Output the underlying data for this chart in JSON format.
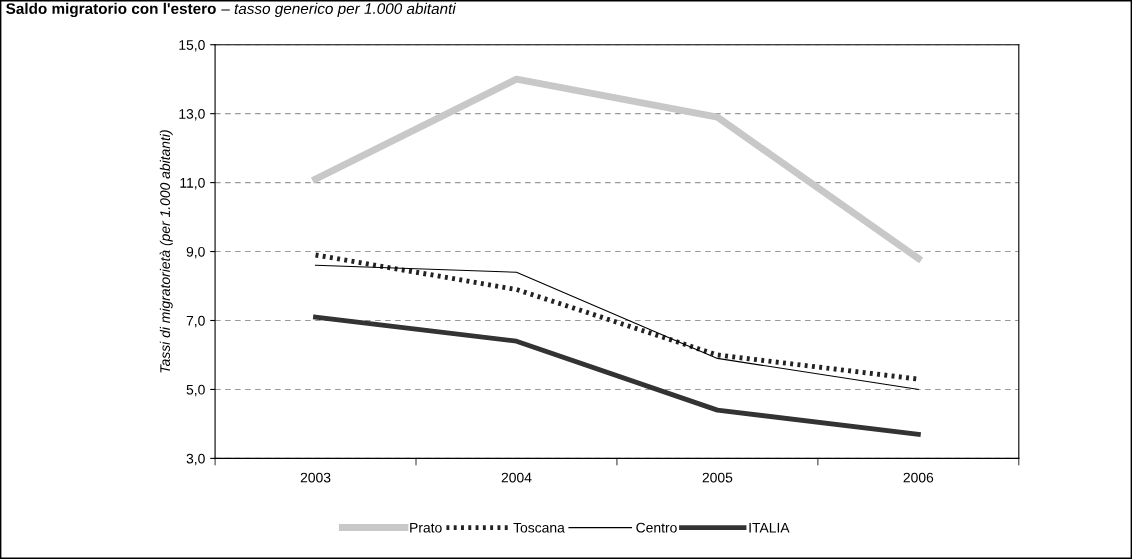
{
  "chart_data": {
    "type": "line",
    "title": "Saldo migratorio con l'estero",
    "subtitle": "– tasso generico per 1.000 abitanti",
    "ylabel": "Tassi di migratorietà (per 1.000 abitanti)",
    "categories": [
      "2003",
      "2004",
      "2005",
      "2006"
    ],
    "series": [
      {
        "name": "Prato",
        "color": "#c8c8c8",
        "line_style": "solid",
        "values": [
          11.1,
          14.0,
          12.9,
          8.8
        ]
      },
      {
        "name": "Toscana",
        "color": "#222222",
        "line_style": "dotted",
        "values": [
          8.9,
          7.9,
          6.0,
          5.3
        ]
      },
      {
        "name": "Centro",
        "color": "#000000",
        "line_style": "solid",
        "values": [
          8.6,
          8.4,
          5.9,
          5.0
        ]
      },
      {
        "name": "ITALIA",
        "color": "#333333",
        "line_style": "solid",
        "values": [
          7.1,
          6.4,
          4.4,
          3.7
        ]
      }
    ],
    "ylim": [
      3,
      15
    ],
    "yticks": [
      {
        "value": 3,
        "label": "3,0"
      },
      {
        "value": 5,
        "label": "5,0"
      },
      {
        "value": 7,
        "label": "7,0"
      },
      {
        "value": 9,
        "label": "9,0"
      },
      {
        "value": 11,
        "label": "11,0"
      },
      {
        "value": 13,
        "label": "13,0"
      },
      {
        "value": 15,
        "label": "15,0"
      }
    ],
    "grid": "y",
    "legend": "bottom",
    "marker": "none"
  }
}
